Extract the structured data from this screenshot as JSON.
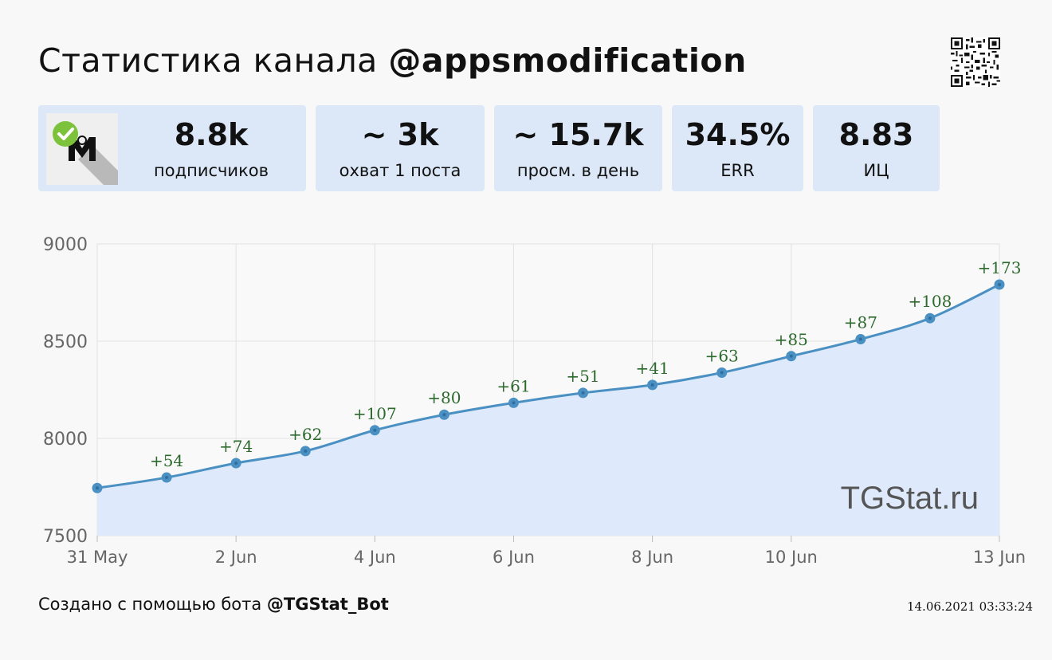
{
  "header": {
    "title_prefix": "Статистика канала",
    "channel_handle": "@appsmodification"
  },
  "stats": [
    {
      "value": "8.8k",
      "label": "подписчиков"
    },
    {
      "value": "~ 3k",
      "label": "охват 1 поста"
    },
    {
      "value": "~ 15.7k",
      "label": "просм. в день"
    },
    {
      "value": "34.5%",
      "label": "ERR"
    },
    {
      "value": "8.83",
      "label": "ИЦ"
    }
  ],
  "watermark": "TGStat.ru",
  "footer": {
    "created_text": "Создано с помощью бота",
    "bot_handle": "@TGStat_Bot",
    "timestamp": "14.06.2021 03:33:24"
  },
  "colors": {
    "card_bg": "#dce8f7",
    "line": "#4a90c2",
    "area": "#deeafb",
    "delta_text": "#2d6a2d"
  },
  "icons": [
    "avatar",
    "verified-badge-icon",
    "qr-code-icon"
  ],
  "chart_data": {
    "type": "area",
    "title": "",
    "xlabel": "",
    "ylabel": "",
    "x": [
      "31 May",
      "1 Jun",
      "2 Jun",
      "3 Jun",
      "4 Jun",
      "5 Jun",
      "6 Jun",
      "7 Jun",
      "8 Jun",
      "9 Jun",
      "10 Jun",
      "11 Jun",
      "12 Jun",
      "13 Jun"
    ],
    "x_ticks": [
      "31 May",
      "2 Jun",
      "4 Jun",
      "6 Jun",
      "8 Jun",
      "10 Jun",
      "13 Jun"
    ],
    "series": [
      {
        "values": [
          7745,
          7799,
          7873,
          7935,
          8042,
          8122,
          8183,
          8234,
          8275,
          8338,
          8423,
          8510,
          8618,
          8791
        ]
      }
    ],
    "annotations": [
      "",
      "+54",
      "+74",
      "+62",
      "+107",
      "+80",
      "+61",
      "+51",
      "+41",
      "+63",
      "+85",
      "+87",
      "+108",
      "+173"
    ],
    "ylim": [
      7500,
      9000
    ],
    "y_ticks": [
      7500,
      8000,
      8500,
      9000
    ],
    "grid": true
  }
}
